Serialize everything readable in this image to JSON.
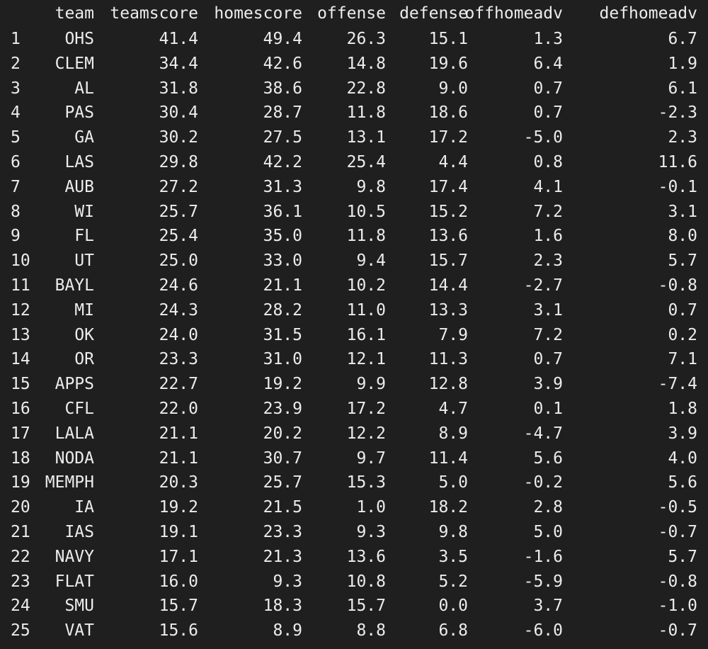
{
  "table": {
    "columns": [
      "team",
      "teamscore",
      "homescore",
      "offense",
      "defense",
      "offhomeadv",
      "defhomeadv"
    ],
    "rows": [
      [
        "1",
        "OHS",
        "41.4",
        "49.4",
        "26.3",
        "15.1",
        "1.3",
        "6.7"
      ],
      [
        "2",
        "CLEM",
        "34.4",
        "42.6",
        "14.8",
        "19.6",
        "6.4",
        "1.9"
      ],
      [
        "3",
        "AL",
        "31.8",
        "38.6",
        "22.8",
        "9.0",
        "0.7",
        "6.1"
      ],
      [
        "4",
        "PAS",
        "30.4",
        "28.7",
        "11.8",
        "18.6",
        "0.7",
        "-2.3"
      ],
      [
        "5",
        "GA",
        "30.2",
        "27.5",
        "13.1",
        "17.2",
        "-5.0",
        "2.3"
      ],
      [
        "6",
        "LAS",
        "29.8",
        "42.2",
        "25.4",
        "4.4",
        "0.8",
        "11.6"
      ],
      [
        "7",
        "AUB",
        "27.2",
        "31.3",
        "9.8",
        "17.4",
        "4.1",
        "-0.1"
      ],
      [
        "8",
        "WI",
        "25.7",
        "36.1",
        "10.5",
        "15.2",
        "7.2",
        "3.1"
      ],
      [
        "9",
        "FL",
        "25.4",
        "35.0",
        "11.8",
        "13.6",
        "1.6",
        "8.0"
      ],
      [
        "10",
        "UT",
        "25.0",
        "33.0",
        "9.4",
        "15.7",
        "2.3",
        "5.7"
      ],
      [
        "11",
        "BAYL",
        "24.6",
        "21.1",
        "10.2",
        "14.4",
        "-2.7",
        "-0.8"
      ],
      [
        "12",
        "MI",
        "24.3",
        "28.2",
        "11.0",
        "13.3",
        "3.1",
        "0.7"
      ],
      [
        "13",
        "OK",
        "24.0",
        "31.5",
        "16.1",
        "7.9",
        "7.2",
        "0.2"
      ],
      [
        "14",
        "OR",
        "23.3",
        "31.0",
        "12.1",
        "11.3",
        "0.7",
        "7.1"
      ],
      [
        "15",
        "APPS",
        "22.7",
        "19.2",
        "9.9",
        "12.8",
        "3.9",
        "-7.4"
      ],
      [
        "16",
        "CFL",
        "22.0",
        "23.9",
        "17.2",
        "4.7",
        "0.1",
        "1.8"
      ],
      [
        "17",
        "LALA",
        "21.1",
        "20.2",
        "12.2",
        "8.9",
        "-4.7",
        "3.9"
      ],
      [
        "18",
        "NODA",
        "21.1",
        "30.7",
        "9.7",
        "11.4",
        "5.6",
        "4.0"
      ],
      [
        "19",
        "MEMPH",
        "20.3",
        "25.7",
        "15.3",
        "5.0",
        "-0.2",
        "5.6"
      ],
      [
        "20",
        "IA",
        "19.2",
        "21.5",
        "1.0",
        "18.2",
        "2.8",
        "-0.5"
      ],
      [
        "21",
        "IAS",
        "19.1",
        "23.3",
        "9.3",
        "9.8",
        "5.0",
        "-0.7"
      ],
      [
        "22",
        "NAVY",
        "17.1",
        "21.3",
        "13.6",
        "3.5",
        "-1.6",
        "5.7"
      ],
      [
        "23",
        "FLAT",
        "16.0",
        "9.3",
        "10.8",
        "5.2",
        "-5.9",
        "-0.8"
      ],
      [
        "24",
        "SMU",
        "15.7",
        "18.3",
        "15.7",
        "0.0",
        "3.7",
        "-1.0"
      ],
      [
        "25",
        "VAT",
        "15.6",
        "8.9",
        "8.8",
        "6.8",
        "-6.0",
        "-0.7"
      ]
    ]
  }
}
